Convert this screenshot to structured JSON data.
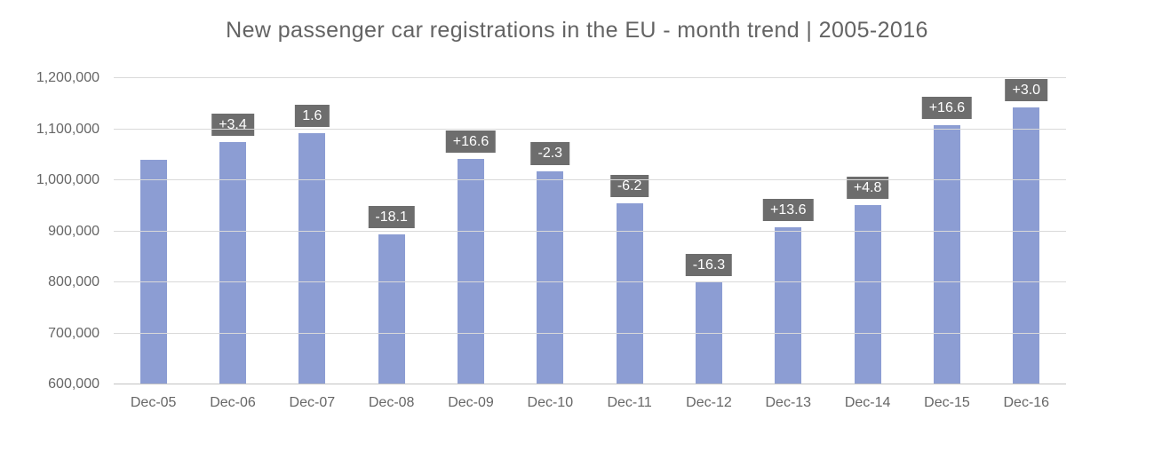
{
  "chart_data": {
    "type": "bar",
    "title": "New passenger car registrations in the EU - month trend | 2005-2016",
    "categories": [
      "Dec-05",
      "Dec-06",
      "Dec-07",
      "Dec-08",
      "Dec-09",
      "Dec-10",
      "Dec-11",
      "Dec-12",
      "Dec-13",
      "Dec-14",
      "Dec-15",
      "Dec-16"
    ],
    "values": [
      1040000,
      1075000,
      1092000,
      894000,
      1042000,
      1018000,
      955000,
      800000,
      908000,
      951000,
      1108000,
      1142000
    ],
    "bar_labels": [
      null,
      "+3.4",
      "1.6",
      "-18.1",
      "+16.6",
      "-2.3",
      "-6.2",
      "-16.3",
      "+13.6",
      "+4.8",
      "+16.6",
      "+3.0"
    ],
    "xlabel": "",
    "ylabel": "",
    "ylim": [
      600000,
      1200000
    ],
    "ytick_interval": 100000,
    "ytick_labels": [
      "600,000",
      "700,000",
      "800,000",
      "900,000",
      "1,000,000",
      "1,100,000",
      "1,200,000"
    ],
    "grid": true,
    "legend_position": "none",
    "colors": {
      "bar": "#8c9dd3",
      "bar_label_background": "#6d6d6d",
      "bar_label_text": "#ffffff",
      "gridline": "#d9d9d9",
      "axis_line": "#c2c2c2",
      "axis_text": "#666666",
      "title_text": "#636363"
    }
  }
}
